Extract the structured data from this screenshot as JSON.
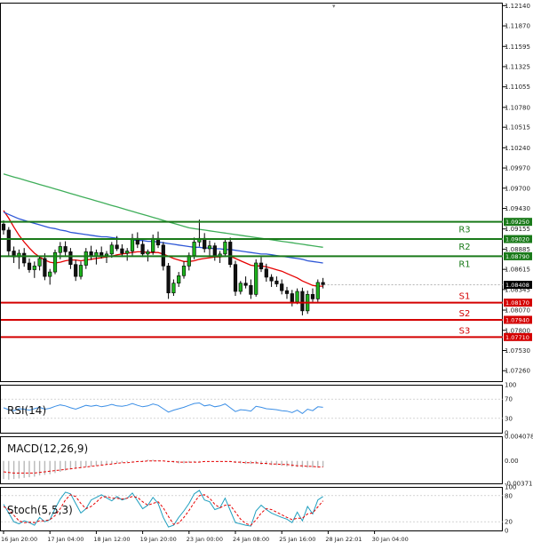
{
  "chart_data": {
    "type": "candlestick",
    "price_axis": {
      "ticks": [
        "1.12140",
        "1.11870",
        "1.11595",
        "1.11325",
        "1.11055",
        "1.10780",
        "1.10515",
        "1.10240",
        "1.09970",
        "1.09700",
        "1.09430",
        "1.09155",
        "1.08885",
        "1.08615",
        "1.08345",
        "1.08070",
        "1.07800",
        "1.07530",
        "1.07260"
      ],
      "range": [
        1.0712,
        1.1218
      ]
    },
    "time_axis": {
      "labels": [
        "16 Jan 20:00",
        "17 Jan 04:00",
        "18 Jan 12:00",
        "19 Jan 20:00",
        "23 Jan 00:00",
        "24 Jan 08:00",
        "25 Jan 16:00",
        "28 Jan 22:01",
        "30 Jan 04:00"
      ],
      "label_bars": [
        0,
        9,
        18,
        27,
        36,
        45,
        54,
        63,
        72
      ]
    },
    "current_price": "1.08408",
    "levels": [
      {
        "name": "R3",
        "value": 1.0925,
        "label": "1.09250",
        "color": "#1a7a1a"
      },
      {
        "name": "R2",
        "value": 1.0902,
        "label": "1.09020",
        "color": "#1a7a1a"
      },
      {
        "name": "R1",
        "value": 1.0879,
        "label": "1.08790",
        "color": "#1a7a1a"
      },
      {
        "name": "S1",
        "value": 1.0817,
        "label": "1.08170",
        "color": "#d40000"
      },
      {
        "name": "S2",
        "value": 1.0794,
        "label": "1.07940",
        "color": "#d40000"
      },
      {
        "name": "S3",
        "value": 1.0771,
        "label": "1.07710",
        "color": "#d40000"
      }
    ],
    "candles": [
      [
        1.0922,
        1.0927,
        1.0908,
        1.0914
      ],
      [
        1.0914,
        1.0918,
        1.088,
        1.0886
      ],
      [
        1.0886,
        1.0892,
        1.087,
        1.0878
      ],
      [
        1.0878,
        1.0888,
        1.0862,
        1.0883
      ],
      [
        1.0883,
        1.089,
        1.0865,
        1.087
      ],
      [
        1.087,
        1.0876,
        1.0857,
        1.0861
      ],
      [
        1.0861,
        1.0872,
        1.085,
        1.0866
      ],
      [
        1.0866,
        1.088,
        1.086,
        1.0876
      ],
      [
        1.0876,
        1.0883,
        1.0847,
        1.0852
      ],
      [
        1.0852,
        1.0862,
        1.0841,
        1.0858
      ],
      [
        1.0858,
        1.0888,
        1.0855,
        1.0884
      ],
      [
        1.0884,
        1.0898,
        1.0875,
        1.0892
      ],
      [
        1.0892,
        1.0899,
        1.088,
        1.0885
      ],
      [
        1.0885,
        1.089,
        1.0862,
        1.0868
      ],
      [
        1.0868,
        1.0874,
        1.0846,
        1.0852
      ],
      [
        1.0852,
        1.0872,
        1.0848,
        1.0867
      ],
      [
        1.0867,
        1.089,
        1.0862,
        1.0885
      ],
      [
        1.0885,
        1.0893,
        1.0874,
        1.0879
      ],
      [
        1.0879,
        1.0888,
        1.0868,
        1.0884
      ],
      [
        1.0884,
        1.0892,
        1.0876,
        1.088
      ],
      [
        1.088,
        1.0886,
        1.087,
        1.0882
      ],
      [
        1.0882,
        1.0898,
        1.0877,
        1.0894
      ],
      [
        1.0894,
        1.0906,
        1.0886,
        1.0889
      ],
      [
        1.0889,
        1.0895,
        1.0878,
        1.0883
      ],
      [
        1.0883,
        1.089,
        1.0873,
        1.0886
      ],
      [
        1.0886,
        1.0909,
        1.088,
        1.0903
      ],
      [
        1.0903,
        1.0911,
        1.089,
        1.0895
      ],
      [
        1.0895,
        1.09,
        1.0878,
        1.0882
      ],
      [
        1.0882,
        1.0888,
        1.0872,
        1.0885
      ],
      [
        1.0885,
        1.0908,
        1.0881,
        1.0903
      ],
      [
        1.0903,
        1.0912,
        1.089,
        1.0894
      ],
      [
        1.0894,
        1.0898,
        1.086,
        1.0866
      ],
      [
        1.0866,
        1.087,
        1.0822,
        1.083
      ],
      [
        1.083,
        1.0848,
        1.0826,
        1.0843
      ],
      [
        1.0843,
        1.0858,
        1.0838,
        1.0853
      ],
      [
        1.0853,
        1.0872,
        1.0849,
        1.0866
      ],
      [
        1.0866,
        1.0884,
        1.086,
        1.088
      ],
      [
        1.088,
        1.0904,
        1.0875,
        1.0898
      ],
      [
        1.0898,
        1.0928,
        1.0892,
        1.0903
      ],
      [
        1.0903,
        1.091,
        1.0884,
        1.0889
      ],
      [
        1.0889,
        1.09,
        1.0878,
        1.0893
      ],
      [
        1.0893,
        1.0897,
        1.0873,
        1.0879
      ],
      [
        1.0879,
        1.0886,
        1.087,
        1.0882
      ],
      [
        1.0882,
        1.0902,
        1.0878,
        1.0898
      ],
      [
        1.0898,
        1.0904,
        1.0864,
        1.0868
      ],
      [
        1.0868,
        1.0873,
        1.0826,
        1.0832
      ],
      [
        1.0832,
        1.0846,
        1.0828,
        1.0843
      ],
      [
        1.0843,
        1.0852,
        1.0836,
        1.084
      ],
      [
        1.084,
        1.0848,
        1.0822,
        1.0828
      ],
      [
        1.0828,
        1.0875,
        1.0825,
        1.087
      ],
      [
        1.087,
        1.0878,
        1.0858,
        1.0862
      ],
      [
        1.0862,
        1.0869,
        1.0845,
        1.0851
      ],
      [
        1.0851,
        1.0855,
        1.0838,
        1.0846
      ],
      [
        1.0846,
        1.0852,
        1.0838,
        1.0842
      ],
      [
        1.0842,
        1.0848,
        1.0828,
        1.0833
      ],
      [
        1.0833,
        1.0838,
        1.0822,
        1.0829
      ],
      [
        1.0829,
        1.0834,
        1.0812,
        1.0818
      ],
      [
        1.0818,
        1.0836,
        1.0815,
        1.0832
      ],
      [
        1.0832,
        1.0837,
        1.08,
        1.0806
      ],
      [
        1.0806,
        1.0833,
        1.0802,
        1.0828
      ],
      [
        1.0828,
        1.0836,
        1.0818,
        1.0822
      ],
      [
        1.0822,
        1.0848,
        1.0818,
        1.0844
      ],
      [
        1.0844,
        1.085,
        1.0836,
        1.0841
      ]
    ],
    "ma_series": [
      {
        "color": "#e60000",
        "values": [
          1.094,
          1.093,
          1.0918,
          1.0907,
          1.0898,
          1.089,
          1.0883,
          1.0878,
          1.0874,
          1.0871,
          1.087,
          1.0871,
          1.0873,
          1.0874,
          1.0874,
          1.0873,
          1.0874,
          1.0875,
          1.0876,
          1.0877,
          1.0878,
          1.0879,
          1.0881,
          1.0882,
          1.0883,
          1.0884,
          1.0885,
          1.0885,
          1.0884,
          1.0884,
          1.0884,
          1.0882,
          1.0879,
          1.0876,
          1.0874,
          1.0872,
          1.0872,
          1.0873,
          1.0875,
          1.0876,
          1.0877,
          1.0878,
          1.0878,
          1.0879,
          1.0879,
          1.0876,
          1.0873,
          1.087,
          1.0867,
          1.0866,
          1.0866,
          1.0865,
          1.0863,
          1.0861,
          1.0859,
          1.0856,
          1.0853,
          1.085,
          1.0846,
          1.0843,
          1.084,
          1.0839,
          1.0839
        ]
      },
      {
        "color": "#2e57d6",
        "values": [
          1.0938,
          1.0935,
          1.0932,
          1.0929,
          1.0927,
          1.0925,
          1.0923,
          1.0921,
          1.0919,
          1.0917,
          1.0916,
          1.0914,
          1.0913,
          1.0911,
          1.091,
          1.0909,
          1.0908,
          1.0907,
          1.0906,
          1.0905,
          1.0905,
          1.0904,
          1.0903,
          1.0902,
          1.0902,
          1.0901,
          1.09,
          1.09,
          1.0899,
          1.0899,
          1.0898,
          1.0897,
          1.0896,
          1.0895,
          1.0894,
          1.0893,
          1.0892,
          1.0891,
          1.0891,
          1.089,
          1.089,
          1.0889,
          1.0889,
          1.0888,
          1.0888,
          1.0887,
          1.0886,
          1.0885,
          1.0884,
          1.0883,
          1.0882,
          1.0882,
          1.0881,
          1.088,
          1.0879,
          1.0878,
          1.0877,
          1.0876,
          1.0875,
          1.0873,
          1.0872,
          1.0871,
          1.087
        ]
      },
      {
        "color": "#3fae5a",
        "values": [
          1.0989,
          1.0987,
          1.0985,
          1.0983,
          1.0981,
          1.0979,
          1.0977,
          1.0975,
          1.0973,
          1.0971,
          1.0969,
          1.0967,
          1.0965,
          1.0963,
          1.0961,
          1.0959,
          1.0957,
          1.0955,
          1.0953,
          1.0951,
          1.0949,
          1.0947,
          1.0945,
          1.0943,
          1.0941,
          1.0939,
          1.0937,
          1.0935,
          1.0933,
          1.0931,
          1.0929,
          1.0927,
          1.0925,
          1.0923,
          1.0921,
          1.0919,
          1.0917,
          1.0916,
          1.0915,
          1.0914,
          1.0913,
          1.0912,
          1.0911,
          1.091,
          1.0909,
          1.0908,
          1.0907,
          1.0906,
          1.0905,
          1.0904,
          1.0903,
          1.0902,
          1.0901,
          1.09,
          1.0899,
          1.0898,
          1.0897,
          1.0896,
          1.0895,
          1.0894,
          1.0893,
          1.0892,
          1.0891
        ]
      }
    ],
    "rsi": {
      "label": "RSI(14)",
      "ticks": [
        "100",
        "70",
        "30",
        "0"
      ],
      "range": [
        0,
        100
      ],
      "color": "#3a8ee6",
      "values": [
        52,
        48,
        46,
        50,
        49,
        47,
        50,
        53,
        49,
        51,
        55,
        58,
        56,
        52,
        49,
        53,
        57,
        55,
        57,
        54,
        56,
        59,
        56,
        55,
        57,
        61,
        57,
        54,
        56,
        60,
        57,
        50,
        43,
        47,
        50,
        53,
        57,
        61,
        62,
        56,
        58,
        54,
        56,
        60,
        52,
        44,
        48,
        47,
        45,
        55,
        53,
        50,
        49,
        48,
        46,
        45,
        42,
        47,
        40,
        49,
        46,
        54,
        53
      ]
    },
    "macd": {
      "label": "MACD(12,26,9)",
      "ticks": [
        "0.004078",
        "0.00",
        "-0.003711"
      ],
      "range": [
        -0.003711,
        0.004078
      ],
      "hist_color": "#b8b8b8",
      "signal_color": "#e60000",
      "hist": [
        -0.003,
        -0.0031,
        -0.003,
        -0.0029,
        -0.0028,
        -0.0027,
        -0.0026,
        -0.0024,
        -0.0023,
        -0.0022,
        -0.002,
        -0.0018,
        -0.0016,
        -0.0014,
        -0.0013,
        -0.0012,
        -0.001,
        -0.0009,
        -0.0008,
        -0.0007,
        -0.0006,
        -0.0005,
        -0.0004,
        -0.0003,
        -0.0002,
        -0.0001,
        0.0,
        0.0001,
        0.0002,
        0.0002,
        0.0001,
        0.0,
        -0.0002,
        -0.0003,
        -0.0004,
        -0.0004,
        -0.0003,
        -0.0002,
        -0.0001,
        0.0,
        0.0,
        0.0,
        -0.0001,
        -0.0001,
        -0.0002,
        -0.0003,
        -0.0004,
        -0.0005,
        -0.0005,
        -0.0005,
        -0.0006,
        -0.0006,
        -0.0007,
        -0.0007,
        -0.0008,
        -0.0009,
        -0.001,
        -0.001,
        -0.0011,
        -0.0011,
        -0.0011,
        -0.0011,
        -0.001
      ],
      "signal": [
        -0.0018,
        -0.0019,
        -0.002,
        -0.002,
        -0.002,
        -0.002,
        -0.002,
        -0.0019,
        -0.0018,
        -0.0017,
        -0.0016,
        -0.0015,
        -0.0014,
        -0.0013,
        -0.0012,
        -0.0011,
        -0.001,
        -0.0009,
        -0.0008,
        -0.0007,
        -0.0006,
        -0.0005,
        -0.0004,
        -0.0003,
        -0.0003,
        -0.0002,
        -0.0001,
        -0.0001,
        0.0,
        0.0,
        0.0,
        0.0,
        -0.0001,
        -0.0001,
        -0.0002,
        -0.0002,
        -0.0002,
        -0.0002,
        -0.0002,
        -0.0001,
        -0.0001,
        -0.0001,
        -0.0001,
        -0.0001,
        -0.0001,
        -0.0002,
        -0.0002,
        -0.0003,
        -0.0003,
        -0.0003,
        -0.0004,
        -0.0004,
        -0.0005,
        -0.0005,
        -0.0006,
        -0.0006,
        -0.0007,
        -0.0008,
        -0.0008,
        -0.0009,
        -0.0009,
        -0.001,
        -0.001
      ]
    },
    "stoch": {
      "label": "Stoch(5,5,3)",
      "ticks": [
        "100",
        "80",
        "20",
        "0"
      ],
      "range": [
        0,
        100
      ],
      "main_color": "#1f9fbf",
      "signal_color": "#e60000",
      "main": [
        60,
        40,
        20,
        15,
        22,
        18,
        12,
        30,
        20,
        25,
        50,
        72,
        88,
        84,
        62,
        40,
        50,
        70,
        76,
        82,
        75,
        68,
        78,
        70,
        74,
        86,
        68,
        50,
        58,
        76,
        62,
        30,
        8,
        12,
        30,
        45,
        62,
        84,
        92,
        70,
        66,
        48,
        52,
        74,
        46,
        18,
        15,
        12,
        10,
        45,
        58,
        48,
        40,
        35,
        30,
        26,
        18,
        42,
        22,
        55,
        38,
        70,
        78
      ],
      "signal": [
        55,
        48,
        35,
        22,
        18,
        19,
        18,
        22,
        22,
        25,
        34,
        50,
        70,
        82,
        78,
        62,
        50,
        55,
        65,
        76,
        78,
        74,
        74,
        72,
        74,
        78,
        76,
        66,
        58,
        62,
        66,
        52,
        32,
        14,
        17,
        30,
        46,
        64,
        80,
        82,
        74,
        60,
        52,
        58,
        58,
        42,
        26,
        16,
        12,
        24,
        40,
        50,
        48,
        42,
        36,
        30,
        25,
        28,
        28,
        38,
        40,
        54,
        68
      ]
    }
  }
}
